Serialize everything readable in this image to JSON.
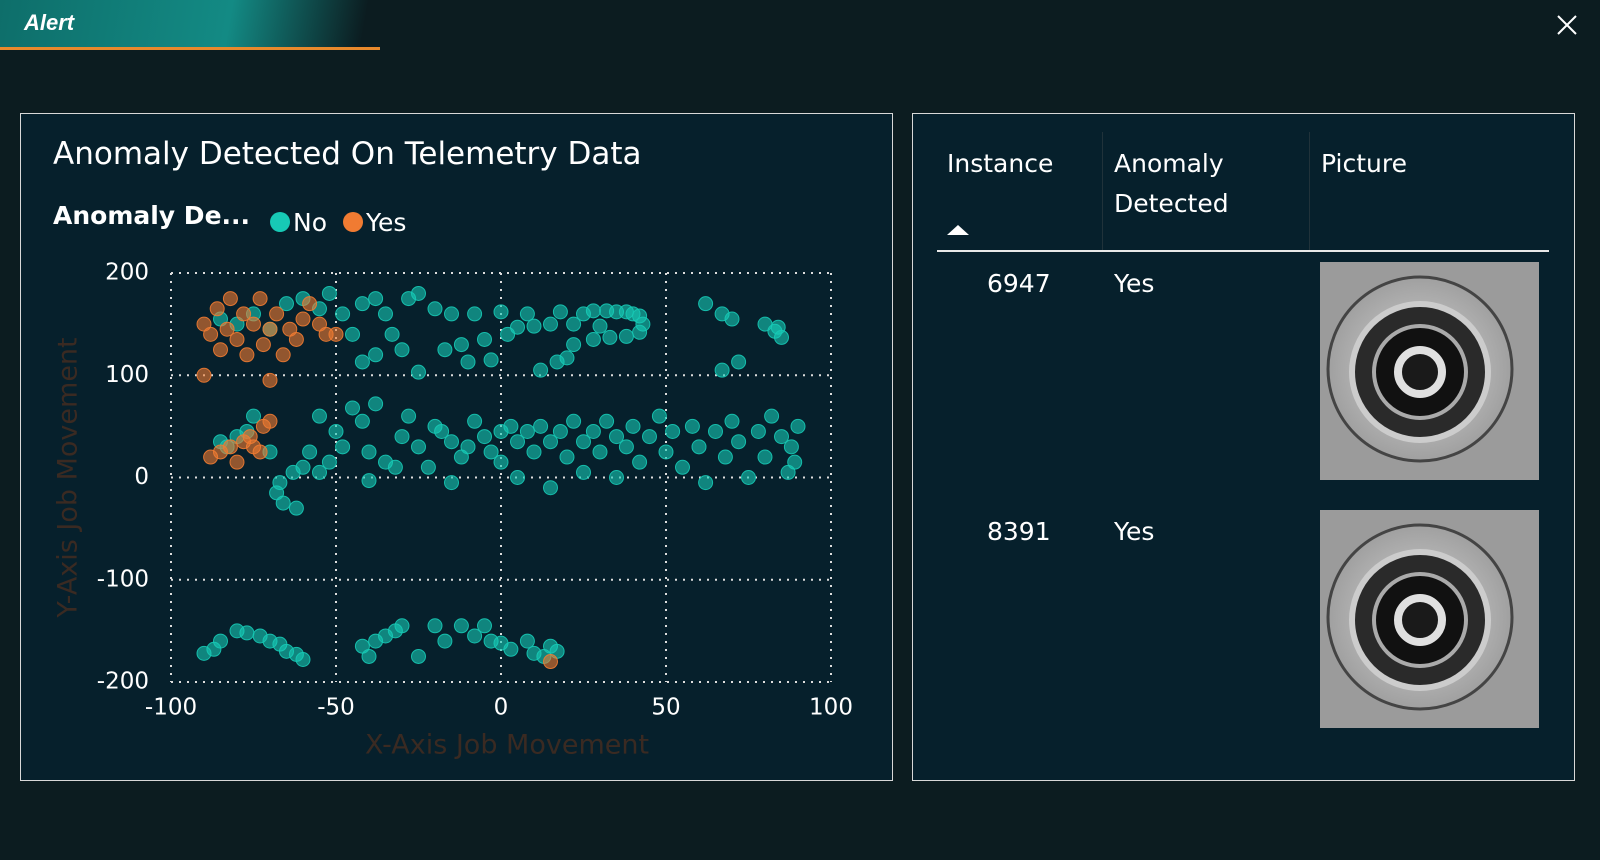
{
  "header": {
    "title": "Alert"
  },
  "chart_data": {
    "type": "scatter",
    "title": "Anomaly Detected On Telemetry Data",
    "legend_title": "Anomaly De...",
    "x_label": "X-Axis Job Movement",
    "y_label": "Y-Axis Job Movement",
    "xlim": [
      -100,
      100
    ],
    "ylim": [
      -200,
      200
    ],
    "xticks": [
      -100,
      -50,
      0,
      50,
      100
    ],
    "yticks": [
      -200,
      -100,
      0,
      100,
      200
    ],
    "grid": true,
    "series": [
      {
        "name": "No",
        "color": "#17c9b5",
        "x": [
          -85,
          -80,
          -75,
          -70,
          -65,
          -60,
          -55,
          -52,
          -48,
          -45,
          -42,
          -38,
          -35,
          -33,
          -30,
          -28,
          -25,
          -20,
          -17,
          -15,
          -12,
          -8,
          -5,
          -3,
          0,
          2,
          5,
          8,
          10,
          12,
          15,
          18,
          20,
          22,
          25,
          28,
          30,
          32,
          35,
          38,
          40,
          42,
          43,
          42,
          38,
          33,
          28,
          22,
          17,
          -10,
          -25,
          -38,
          -42,
          62,
          67,
          70,
          72,
          67,
          80,
          84,
          85,
          83,
          -85,
          -83,
          -80,
          -77,
          -75,
          -70,
          -67,
          -68,
          -66,
          -62,
          -63,
          -60,
          -58,
          -55,
          -52,
          -50,
          -48,
          -45,
          -42,
          -40,
          -38,
          -35,
          -32,
          -30,
          -28,
          -25,
          -22,
          -20,
          -18,
          -15,
          -12,
          -10,
          -8,
          -5,
          -3,
          0,
          0,
          3,
          5,
          5,
          8,
          10,
          12,
          15,
          15,
          18,
          20,
          22,
          25,
          25,
          28,
          30,
          32,
          35,
          35,
          38,
          40,
          42,
          45,
          48,
          50,
          52,
          55,
          58,
          60,
          62,
          65,
          68,
          70,
          72,
          75,
          78,
          80,
          82,
          85,
          87,
          88,
          90,
          89,
          -15,
          -40,
          -55,
          -90,
          -87,
          -85,
          -80,
          -77,
          -73,
          -70,
          -67,
          -65,
          -62,
          -60,
          -42,
          -40,
          -38,
          -35,
          -32,
          -30,
          -25,
          -20,
          -17,
          -12,
          -8,
          -5,
          -3,
          0,
          3,
          8,
          10,
          13,
          15,
          17
        ],
        "y": [
          155,
          150,
          160,
          145,
          170,
          175,
          165,
          180,
          160,
          140,
          170,
          175,
          160,
          140,
          125,
          175,
          180,
          165,
          125,
          160,
          130,
          160,
          135,
          115,
          162,
          140,
          147,
          160,
          148,
          105,
          150,
          162,
          117,
          150,
          160,
          163,
          148,
          163,
          162,
          162,
          160,
          158,
          150,
          142,
          138,
          137,
          135,
          130,
          113,
          113,
          103,
          120,
          113,
          170,
          160,
          155,
          113,
          105,
          150,
          147,
          137,
          143,
          35,
          30,
          40,
          45,
          60,
          25,
          -5,
          -15,
          -25,
          -30,
          5,
          10,
          25,
          60,
          15,
          45,
          30,
          68,
          55,
          25,
          72,
          15,
          10,
          40,
          60,
          30,
          10,
          50,
          45,
          35,
          20,
          30,
          55,
          40,
          25,
          45,
          15,
          50,
          35,
          0,
          45,
          25,
          50,
          35,
          -10,
          45,
          20,
          55,
          35,
          5,
          45,
          25,
          55,
          40,
          0,
          30,
          50,
          15,
          40,
          60,
          25,
          45,
          10,
          50,
          30,
          -5,
          45,
          20,
          55,
          35,
          0,
          45,
          20,
          60,
          40,
          5,
          30,
          50,
          15,
          -5,
          -3,
          5,
          -172,
          -168,
          -160,
          -150,
          -152,
          -155,
          -160,
          -163,
          -170,
          -173,
          -178,
          -165,
          -175,
          -160,
          -155,
          -150,
          -145,
          -175,
          -145,
          -160,
          -145,
          -155,
          -145,
          -160,
          -162,
          -168,
          -160,
          -172,
          -175,
          -165,
          -170
        ]
      },
      {
        "name": "Yes",
        "color": "#f07b32",
        "x": [
          -90,
          -88,
          -86,
          -85,
          -83,
          -82,
          -80,
          -78,
          -77,
          -75,
          -73,
          -72,
          -70,
          -68,
          -66,
          -64,
          -62,
          -60,
          -58,
          -55,
          -53,
          -90,
          -70,
          -50,
          -88,
          -85,
          -82,
          -80,
          -78,
          -76,
          -75,
          -72,
          -70,
          -73,
          15
        ],
        "y": [
          150,
          140,
          165,
          125,
          145,
          175,
          135,
          160,
          120,
          150,
          175,
          130,
          145,
          160,
          120,
          145,
          135,
          155,
          170,
          150,
          140,
          100,
          95,
          140,
          20,
          25,
          30,
          15,
          35,
          40,
          30,
          50,
          55,
          25,
          -180
        ]
      }
    ]
  },
  "table": {
    "columns": [
      "Instance",
      "Anomaly Detected",
      "Picture"
    ],
    "rows": [
      [
        "6947",
        "Yes"
      ],
      [
        "8391",
        "Yes"
      ]
    ]
  }
}
